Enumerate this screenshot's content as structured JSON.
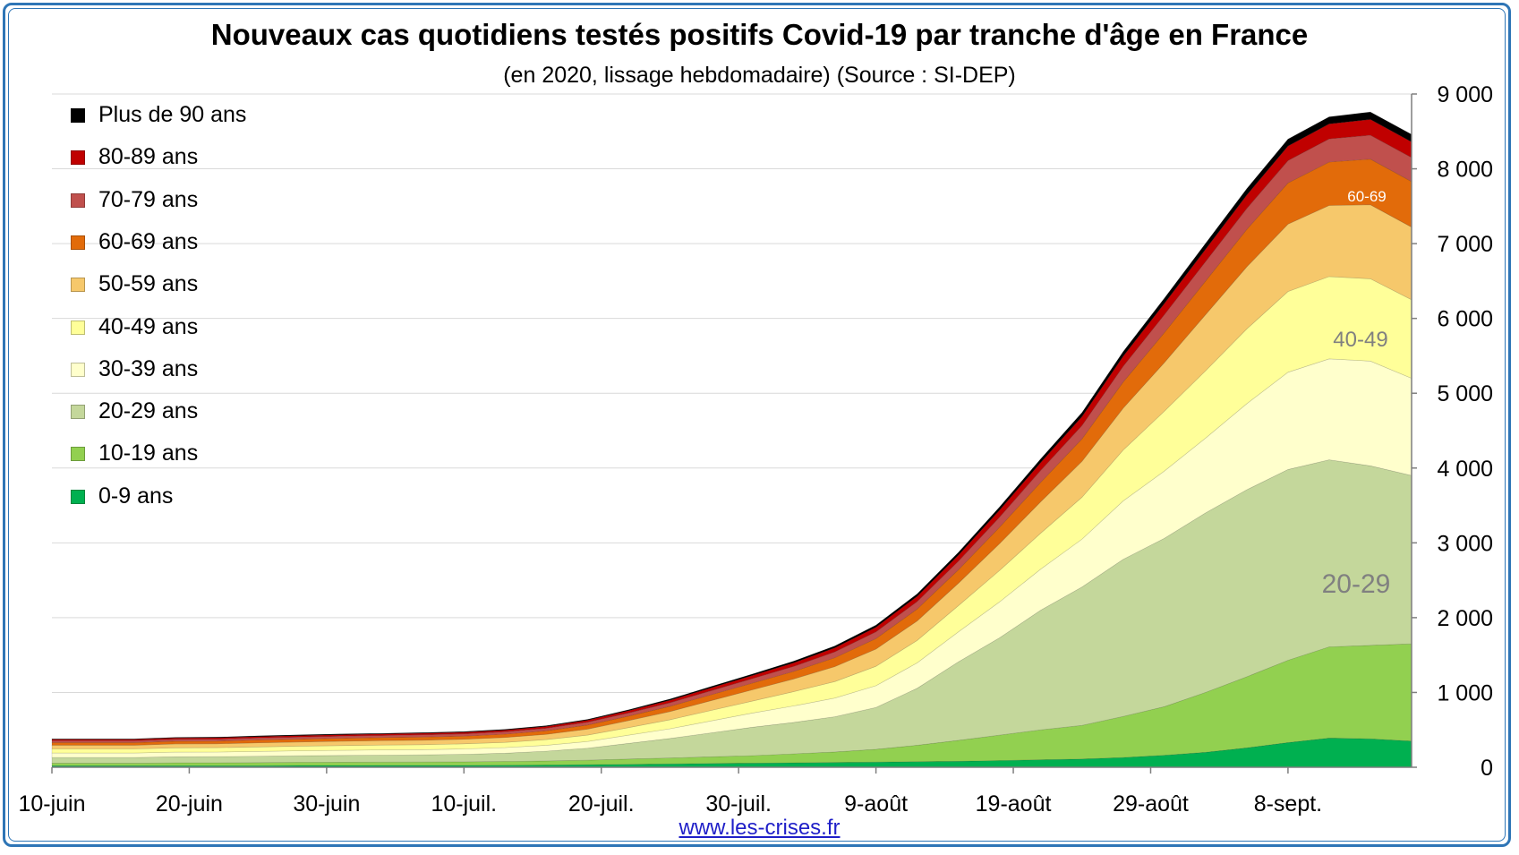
{
  "title": "Nouveaux cas quotidiens testés positifs Covid-19 par tranche d'âge en France",
  "subtitle": "(en 2020, lissage hebdomadaire) (Source : SI-DEP)",
  "source_link": "www.les-crises.fr",
  "chart_data": {
    "type": "area",
    "stacked": true,
    "xlabel": "",
    "ylabel": "",
    "ylim": [
      0,
      9000
    ],
    "yticks": [
      0,
      1000,
      2000,
      3000,
      4000,
      5000,
      6000,
      7000,
      8000,
      9000
    ],
    "ytick_labels": [
      "0",
      "1 000",
      "2 000",
      "3 000",
      "4 000",
      "5 000",
      "6 000",
      "7 000",
      "8 000",
      "9 000"
    ],
    "y_axis_side": "right",
    "grid": true,
    "legend_position": "top-left",
    "xtick_labels": [
      "10-juin",
      "20-juin",
      "30-juin",
      "10-juil.",
      "20-juil.",
      "30-juil.",
      "9-août",
      "19-août",
      "29-août",
      "8-sept."
    ],
    "x_start": "2020-06-10",
    "x_end": "2020-09-17",
    "x_step_days": 3,
    "x": [
      "2020-06-10",
      "2020-06-13",
      "2020-06-16",
      "2020-06-19",
      "2020-06-22",
      "2020-06-25",
      "2020-06-28",
      "2020-07-01",
      "2020-07-04",
      "2020-07-07",
      "2020-07-10",
      "2020-07-13",
      "2020-07-16",
      "2020-07-19",
      "2020-07-22",
      "2020-07-25",
      "2020-07-28",
      "2020-07-31",
      "2020-08-03",
      "2020-08-06",
      "2020-08-09",
      "2020-08-12",
      "2020-08-15",
      "2020-08-18",
      "2020-08-21",
      "2020-08-24",
      "2020-08-27",
      "2020-08-30",
      "2020-09-02",
      "2020-09-05",
      "2020-09-08",
      "2020-09-11",
      "2020-09-14",
      "2020-09-17"
    ],
    "series": [
      {
        "name": "0-9 ans",
        "color": "#00b050",
        "values": [
          20,
          20,
          20,
          22,
          22,
          22,
          24,
          24,
          25,
          25,
          25,
          28,
          30,
          35,
          40,
          45,
          50,
          55,
          60,
          65,
          70,
          75,
          80,
          90,
          100,
          110,
          130,
          160,
          200,
          260,
          330,
          390,
          380,
          350
        ]
      },
      {
        "name": "10-19 ans",
        "color": "#92d050",
        "values": [
          35,
          35,
          35,
          38,
          38,
          40,
          42,
          44,
          45,
          46,
          48,
          50,
          55,
          60,
          70,
          80,
          90,
          100,
          120,
          140,
          170,
          220,
          280,
          340,
          400,
          450,
          550,
          650,
          800,
          950,
          1100,
          1220,
          1250,
          1300
        ]
      },
      {
        "name": "20-29 ans",
        "color": "#c4d79b",
        "values": [
          75,
          75,
          75,
          80,
          82,
          85,
          88,
          90,
          92,
          95,
          100,
          110,
          130,
          160,
          210,
          260,
          320,
          380,
          420,
          470,
          560,
          760,
          1050,
          1300,
          1600,
          1850,
          2100,
          2250,
          2400,
          2500,
          2550,
          2500,
          2400,
          2250
        ]
      },
      {
        "name": "30-39 ans",
        "color": "#ffffcc",
        "values": [
          60,
          60,
          60,
          62,
          62,
          65,
          66,
          68,
          70,
          70,
          72,
          75,
          80,
          90,
          110,
          130,
          160,
          190,
          220,
          250,
          290,
          340,
          400,
          480,
          550,
          640,
          780,
          900,
          1000,
          1150,
          1300,
          1350,
          1400,
          1300
        ]
      },
      {
        "name": "40-49 ans",
        "color": "#ffff99",
        "values": [
          55,
          55,
          55,
          58,
          58,
          60,
          62,
          64,
          65,
          66,
          68,
          70,
          75,
          85,
          100,
          120,
          140,
          160,
          190,
          220,
          260,
          300,
          350,
          420,
          480,
          560,
          680,
          800,
          900,
          1000,
          1080,
          1100,
          1100,
          1050
        ]
      },
      {
        "name": "50-59 ans",
        "color": "#f6c86b",
        "values": [
          50,
          50,
          50,
          52,
          52,
          55,
          56,
          58,
          60,
          60,
          62,
          65,
          70,
          80,
          95,
          110,
          130,
          150,
          170,
          200,
          230,
          260,
          300,
          360,
          420,
          480,
          560,
          650,
          750,
          830,
          900,
          950,
          990,
          970
        ]
      },
      {
        "name": "60-69 ans",
        "color": "#e26b0a",
        "values": [
          35,
          35,
          35,
          36,
          36,
          38,
          38,
          40,
          40,
          42,
          42,
          45,
          48,
          55,
          60,
          70,
          80,
          90,
          100,
          120,
          140,
          160,
          180,
          220,
          260,
          300,
          350,
          400,
          450,
          500,
          550,
          580,
          610,
          610
        ]
      },
      {
        "name": "70-79 ans",
        "color": "#c0504d",
        "values": [
          25,
          25,
          25,
          26,
          26,
          27,
          28,
          28,
          28,
          30,
          30,
          32,
          34,
          38,
          42,
          48,
          55,
          60,
          68,
          78,
          90,
          100,
          115,
          135,
          160,
          180,
          210,
          240,
          260,
          280,
          300,
          310,
          320,
          320
        ]
      },
      {
        "name": "80-89 ans",
        "color": "#c00000",
        "values": [
          18,
          18,
          18,
          18,
          19,
          19,
          20,
          20,
          20,
          21,
          21,
          22,
          24,
          26,
          30,
          34,
          38,
          42,
          48,
          54,
          62,
          70,
          80,
          92,
          105,
          118,
          135,
          150,
          165,
          180,
          195,
          200,
          210,
          210
        ]
      },
      {
        "name": "Plus de 90 ans",
        "color": "#000000",
        "values": [
          8,
          8,
          8,
          8,
          8,
          9,
          9,
          9,
          9,
          9,
          9,
          10,
          10,
          11,
          13,
          15,
          17,
          19,
          22,
          25,
          28,
          32,
          37,
          42,
          48,
          54,
          62,
          70,
          77,
          85,
          92,
          95,
          100,
          100
        ]
      }
    ],
    "annotations": [
      {
        "text": "60-69",
        "color": "#ffffff"
      },
      {
        "text": "40-49",
        "color": "#808080"
      },
      {
        "text": "20-29",
        "color": "#808080"
      }
    ]
  }
}
